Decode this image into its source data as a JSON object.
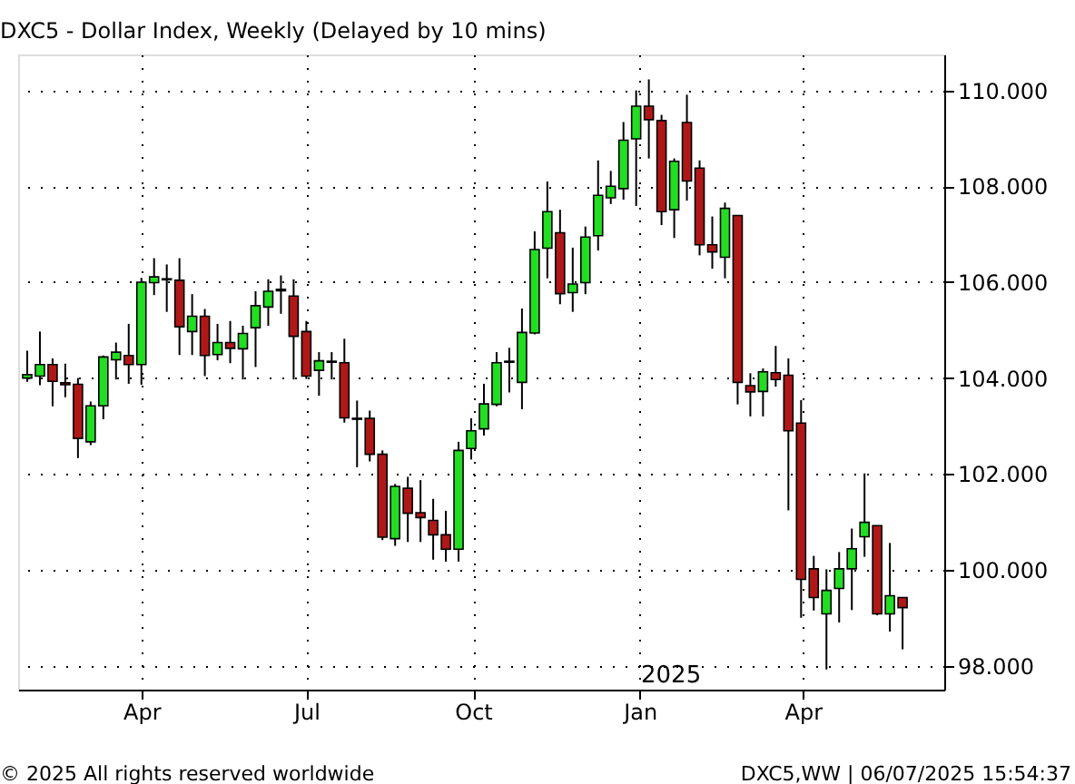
{
  "chart_data": {
    "type": "candlestick",
    "title": "DXC5 - Dollar Index, Weekly (Delayed by 10 mins)",
    "x": [
      "2024-01-29",
      "2024-02-05",
      "2024-02-12",
      "2024-02-19",
      "2024-02-26",
      "2024-03-04",
      "2024-03-11",
      "2024-03-18",
      "2024-03-25",
      "2024-04-01",
      "2024-04-08",
      "2024-04-15",
      "2024-04-22",
      "2024-04-29",
      "2024-05-06",
      "2024-05-13",
      "2024-05-20",
      "2024-05-27",
      "2024-06-03",
      "2024-06-10",
      "2024-06-17",
      "2024-06-24",
      "2024-07-01",
      "2024-07-08",
      "2024-07-15",
      "2024-07-22",
      "2024-07-29",
      "2024-08-05",
      "2024-08-12",
      "2024-08-19",
      "2024-08-26",
      "2024-09-02",
      "2024-09-09",
      "2024-09-16",
      "2024-09-23",
      "2024-09-30",
      "2024-10-07",
      "2024-10-14",
      "2024-10-21",
      "2024-10-28",
      "2024-11-04",
      "2024-11-11",
      "2024-11-18",
      "2024-11-25",
      "2024-12-02",
      "2024-12-09",
      "2024-12-16",
      "2024-12-23",
      "2024-12-30",
      "2025-01-06",
      "2025-01-13",
      "2025-01-20",
      "2025-01-27",
      "2025-02-03",
      "2025-02-10",
      "2025-02-17",
      "2025-02-24",
      "2025-03-03",
      "2025-03-10",
      "2025-03-17",
      "2025-03-24",
      "2025-03-31",
      "2025-04-07",
      "2025-04-14",
      "2025-04-21",
      "2025-04-28",
      "2025-05-05",
      "2025-05-12",
      "2025-05-19",
      "2025-05-26"
    ],
    "ohlc": [
      [
        104.0,
        104.57,
        103.92,
        104.07
      ],
      [
        104.04,
        104.97,
        103.85,
        104.28
      ],
      [
        104.28,
        104.41,
        103.41,
        103.93
      ],
      [
        103.9,
        104.3,
        103.6,
        103.86
      ],
      [
        103.87,
        104.0,
        102.33,
        102.74
      ],
      [
        102.67,
        103.51,
        102.6,
        103.42
      ],
      [
        103.42,
        104.47,
        103.14,
        104.44
      ],
      [
        104.38,
        104.74,
        103.97,
        104.54
      ],
      [
        104.47,
        105.13,
        103.88,
        104.28
      ],
      [
        104.28,
        106.09,
        103.86,
        106.0
      ],
      [
        105.99,
        106.5,
        105.73,
        106.11
      ],
      [
        106.07,
        106.37,
        105.38,
        106.05
      ],
      [
        106.04,
        106.5,
        104.48,
        105.07
      ],
      [
        104.97,
        105.75,
        104.48,
        105.29
      ],
      [
        105.29,
        105.44,
        104.04,
        104.47
      ],
      [
        104.49,
        105.13,
        104.37,
        104.74
      ],
      [
        104.74,
        105.19,
        104.31,
        104.62
      ],
      [
        104.61,
        105.09,
        103.97,
        104.93
      ],
      [
        105.05,
        105.81,
        104.23,
        105.51
      ],
      [
        105.48,
        106.06,
        105.09,
        105.81
      ],
      [
        105.82,
        106.14,
        105.34,
        105.85
      ],
      [
        105.71,
        106.06,
        103.97,
        104.87
      ],
      [
        104.97,
        105.19,
        103.98,
        104.04
      ],
      [
        104.16,
        104.54,
        103.63,
        104.36
      ],
      [
        104.35,
        104.54,
        103.97,
        104.33
      ],
      [
        104.32,
        104.82,
        103.07,
        103.17
      ],
      [
        103.16,
        103.53,
        102.14,
        103.14
      ],
      [
        103.16,
        103.32,
        102.26,
        102.41
      ],
      [
        102.41,
        102.49,
        100.62,
        100.68
      ],
      [
        100.65,
        101.79,
        100.5,
        101.74
      ],
      [
        101.7,
        101.94,
        100.58,
        101.18
      ],
      [
        101.19,
        101.87,
        100.58,
        101.09
      ],
      [
        101.03,
        101.48,
        100.21,
        100.73
      ],
      [
        100.73,
        101.23,
        100.17,
        100.43
      ],
      [
        100.43,
        102.67,
        100.17,
        102.49
      ],
      [
        102.53,
        103.16,
        102.3,
        102.9
      ],
      [
        102.94,
        103.88,
        102.8,
        103.46
      ],
      [
        103.45,
        104.54,
        103.41,
        104.32
      ],
      [
        104.35,
        104.63,
        103.7,
        104.33
      ],
      [
        103.91,
        105.45,
        103.35,
        104.95
      ],
      [
        104.94,
        107.06,
        104.91,
        106.68
      ],
      [
        106.71,
        108.1,
        106.08,
        107.47
      ],
      [
        107.03,
        107.51,
        105.54,
        105.76
      ],
      [
        105.78,
        106.72,
        105.38,
        105.96
      ],
      [
        105.99,
        107.16,
        105.75,
        106.94
      ],
      [
        106.97,
        108.54,
        106.66,
        107.81
      ],
      [
        107.76,
        108.32,
        107.63,
        108.0
      ],
      [
        107.95,
        109.34,
        107.72,
        108.96
      ],
      [
        108.99,
        110.0,
        107.59,
        109.67
      ],
      [
        109.67,
        110.23,
        108.58,
        109.39
      ],
      [
        109.37,
        109.49,
        107.19,
        107.47
      ],
      [
        107.51,
        108.58,
        106.92,
        108.52
      ],
      [
        109.33,
        109.91,
        107.7,
        108.11
      ],
      [
        108.38,
        108.54,
        106.56,
        106.78
      ],
      [
        106.78,
        107.37,
        106.28,
        106.63
      ],
      [
        106.52,
        107.66,
        106.08,
        107.54
      ],
      [
        107.39,
        107.39,
        103.45,
        103.91
      ],
      [
        103.84,
        104.1,
        103.2,
        103.71
      ],
      [
        103.72,
        104.2,
        103.2,
        104.13
      ],
      [
        104.11,
        104.67,
        103.82,
        103.97
      ],
      [
        104.06,
        104.41,
        101.24,
        102.9
      ],
      [
        103.06,
        103.54,
        99.0,
        99.8
      ],
      [
        100.02,
        100.29,
        99.15,
        99.42
      ],
      [
        99.08,
        100.01,
        97.92,
        99.57
      ],
      [
        99.61,
        100.37,
        98.9,
        100.02
      ],
      [
        100.02,
        100.86,
        99.16,
        100.44
      ],
      [
        100.69,
        102.01,
        100.27,
        100.99
      ],
      [
        100.92,
        100.92,
        99.05,
        99.08
      ],
      [
        99.08,
        100.56,
        98.71,
        99.46
      ],
      [
        99.42,
        99.42,
        98.34,
        99.21
      ]
    ],
    "colors": [
      "#22dd22",
      "#22dd22",
      "#b01818",
      "#b01818",
      "#b01818",
      "#22dd22",
      "#22dd22",
      "#22dd22",
      "#b01818",
      "#22dd22",
      "#22dd22",
      "#b01818",
      "#b01818",
      "#22dd22",
      "#b01818",
      "#22dd22",
      "#b01818",
      "#22dd22",
      "#22dd22",
      "#22dd22",
      "#22dd22",
      "#b01818",
      "#b01818",
      "#22dd22",
      "#b01818",
      "#b01818",
      "#b01818",
      "#b01818",
      "#b01818",
      "#22dd22",
      "#b01818",
      "#b01818",
      "#b01818",
      "#b01818",
      "#22dd22",
      "#22dd22",
      "#22dd22",
      "#22dd22",
      "#b01818",
      "#22dd22",
      "#22dd22",
      "#22dd22",
      "#b01818",
      "#22dd22",
      "#22dd22",
      "#22dd22",
      "#22dd22",
      "#22dd22",
      "#22dd22",
      "#b01818",
      "#b01818",
      "#22dd22",
      "#b01818",
      "#b01818",
      "#b01818",
      "#22dd22",
      "#b01818",
      "#b01818",
      "#22dd22",
      "#b01818",
      "#b01818",
      "#b01818",
      "#b01818",
      "#22dd22",
      "#22dd22",
      "#22dd22",
      "#22dd22",
      "#b01818",
      "#22dd22",
      "#b01818"
    ],
    "xlim": [
      "2024-01-24",
      "2025-06-18"
    ],
    "xticks": [
      {
        "value": "2024-04-01",
        "label": "Apr"
      },
      {
        "value": "2024-07-01",
        "label": "Jul"
      },
      {
        "value": "2024-10-01",
        "label": "Oct"
      },
      {
        "value": "2025-01-01",
        "label": "Jan"
      },
      {
        "value": "2025-04-01",
        "label": "Apr"
      }
    ],
    "ylim": [
      97.5,
      110.75
    ],
    "yticks": [
      {
        "value": 98,
        "label": "98.000"
      },
      {
        "value": 100,
        "label": "100.000"
      },
      {
        "value": 102,
        "label": "102.000"
      },
      {
        "value": 104,
        "label": "104.000"
      },
      {
        "value": 106,
        "label": "106.000"
      },
      {
        "value": 108,
        "label": "108.000"
      },
      {
        "value": 110,
        "label": "110.000"
      }
    ],
    "grid": true,
    "annotations": [
      "2025",
      "© 2025 All rights reserved worldwide",
      "DXC5,WW | 06/07/2025 15:54:37"
    ]
  }
}
